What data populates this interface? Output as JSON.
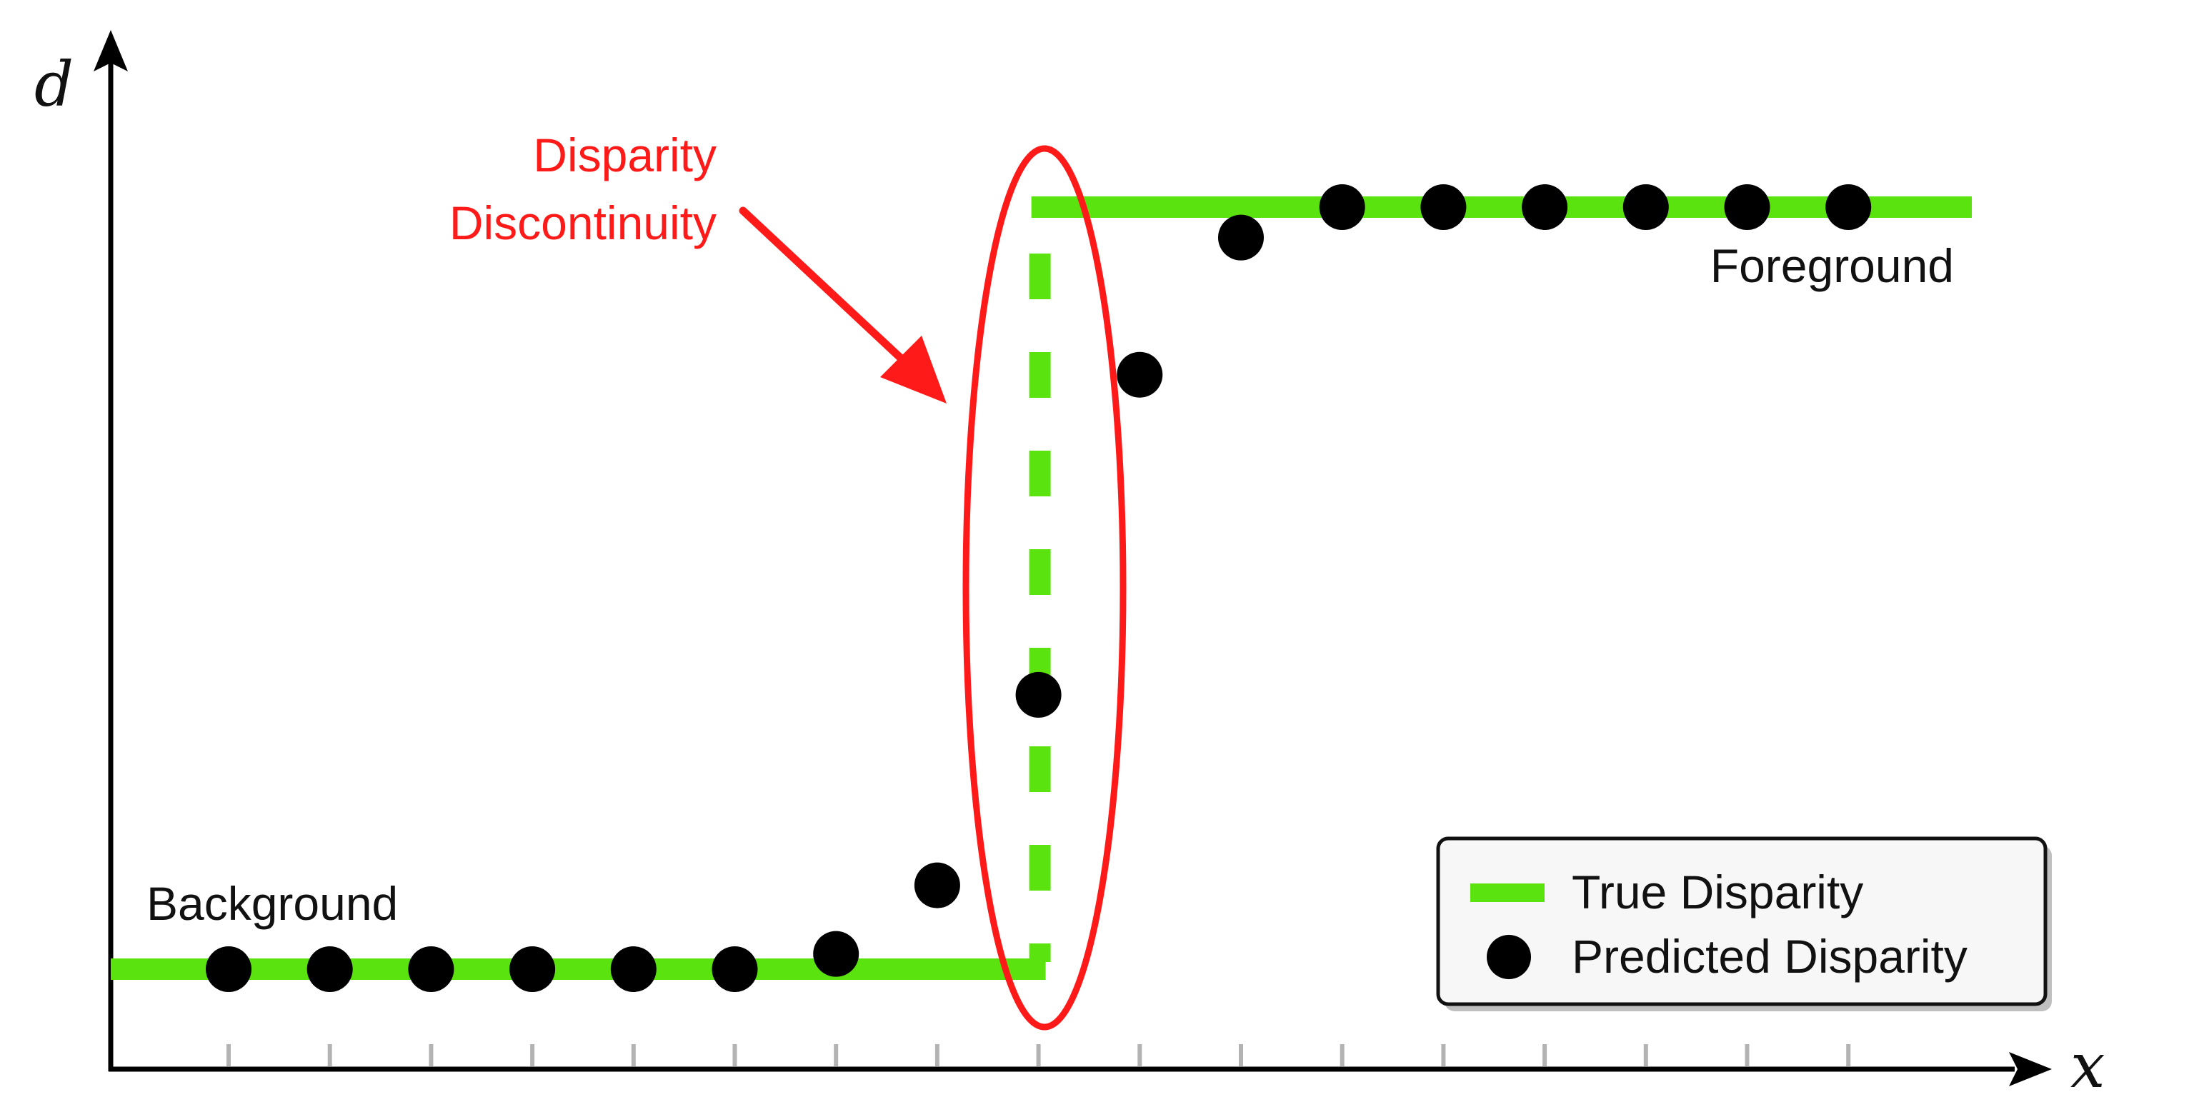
{
  "axes": {
    "y_label": "d",
    "x_label": "x"
  },
  "annotation": {
    "line1": "Disparity",
    "line2": "Discontinuity",
    "color": "#ff1a1a"
  },
  "regions": {
    "background": "Background",
    "foreground": "Foreground"
  },
  "legend": {
    "true_label": "True Disparity",
    "pred_label": "Predicted Disparity",
    "position": "bottom-right"
  },
  "colors": {
    "true": "#5be30f",
    "pred": "#000000",
    "axis": "#000000",
    "tick": "#b3b3b3",
    "annotation": "#ff1a1a"
  },
  "chart_data": {
    "type": "scatter",
    "xlabel": "x",
    "ylabel": "d",
    "x_ticks": [
      1,
      2,
      3,
      4,
      5,
      6,
      7,
      8,
      9,
      10,
      11,
      12,
      13,
      14,
      15,
      16,
      17
    ],
    "true_disparity": {
      "low": 0,
      "high": 1,
      "step_at": 9
    },
    "predicted": [
      {
        "x": 1,
        "y": 0.0
      },
      {
        "x": 2,
        "y": 0.0
      },
      {
        "x": 3,
        "y": 0.0
      },
      {
        "x": 4,
        "y": 0.0
      },
      {
        "x": 5,
        "y": 0.0
      },
      {
        "x": 6,
        "y": 0.0
      },
      {
        "x": 7,
        "y": 0.02
      },
      {
        "x": 8,
        "y": 0.11
      },
      {
        "x": 9,
        "y": 0.36
      },
      {
        "x": 10,
        "y": 0.78
      },
      {
        "x": 11,
        "y": 0.96
      },
      {
        "x": 12,
        "y": 1.0
      },
      {
        "x": 13,
        "y": 1.0
      },
      {
        "x": 14,
        "y": 1.0
      },
      {
        "x": 15,
        "y": 1.0
      },
      {
        "x": 16,
        "y": 1.0
      },
      {
        "x": 17,
        "y": 1.0
      }
    ]
  }
}
